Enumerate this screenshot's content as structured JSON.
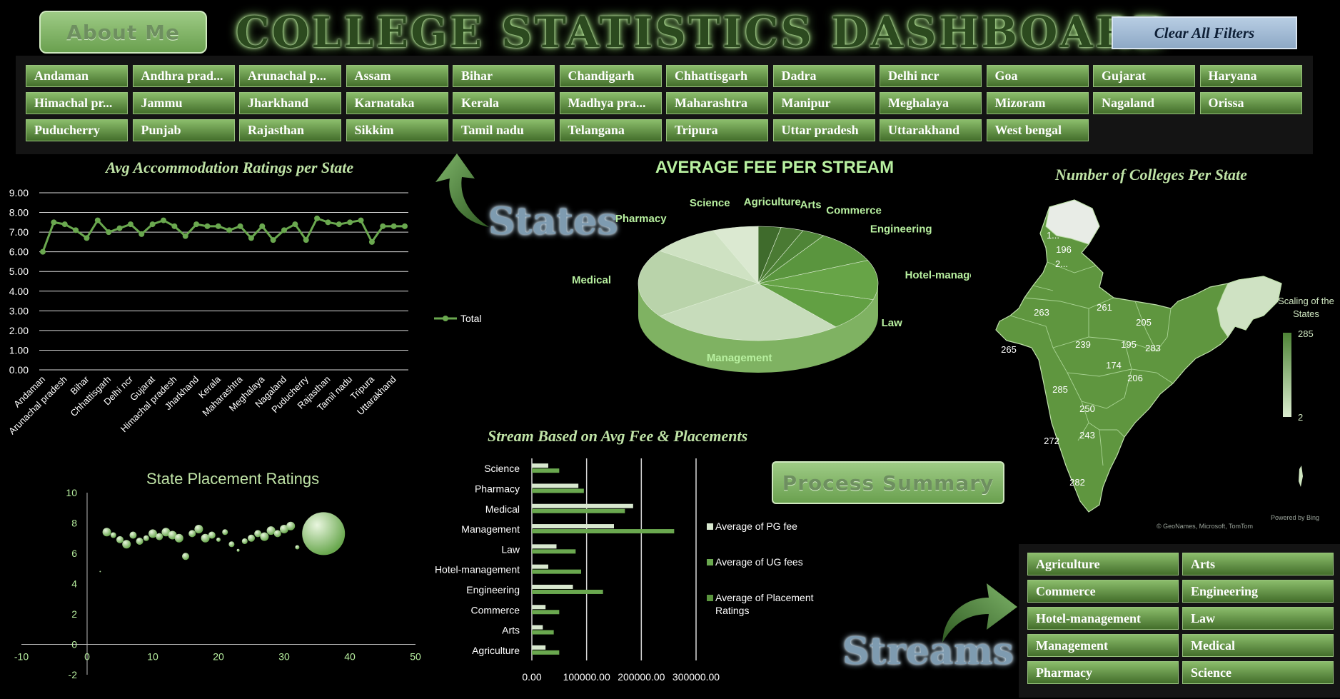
{
  "header": {
    "about_label": "About Me",
    "title": "COLLEGE STATISTICS DASHBOARD",
    "clear_label": "Clear All Filters"
  },
  "states": [
    "Andaman",
    "Andhra prad...",
    "Arunachal p...",
    "Assam",
    "Bihar",
    "Chandigarh",
    "Chhattisgarh",
    "Dadra",
    "Delhi ncr",
    "Goa",
    "Gujarat",
    "Haryana",
    "Himachal pr...",
    "Jammu",
    "Jharkhand",
    "Karnataka",
    "Kerala",
    "Madhya pra...",
    "Maharashtra",
    "Manipur",
    "Meghalaya",
    "Mizoram",
    "Nagaland",
    "Orissa",
    "Puducherry",
    "Punjab",
    "Rajasthan",
    "Sikkim",
    "Tamil nadu",
    "Telangana",
    "Tripura",
    "Uttar pradesh",
    "Uttarakhand",
    "West bengal"
  ],
  "labels": {
    "states_label": "States",
    "streams_label": "Streams",
    "process_label": "Process Summary"
  },
  "streams": [
    "Agriculture",
    "Arts",
    "Commerce",
    "Engineering",
    "Hotel-management",
    "Law",
    "Management",
    "Medical",
    "Pharmacy",
    "Science"
  ],
  "colors": {
    "accent": "#6aa84f",
    "light": "#cfe6c0",
    "tile": "#5e8f43"
  },
  "map": {
    "title": "Number of Colleges Per State",
    "legend_title": "Scaling of the States",
    "legend_max": "285",
    "legend_min": "2",
    "credit1": "Powered by Bing",
    "credit2": "© GeoNames, Microsoft, TomTom",
    "labels": [
      "1...",
      "196",
      "2...",
      "263",
      "261",
      "205",
      "265",
      "239",
      "195",
      "283",
      "174",
      "206",
      "285",
      "250",
      "243",
      "272",
      "282"
    ]
  },
  "chart_data": [
    {
      "type": "line",
      "title": "Avg Accommodation Ratings per State",
      "legend": [
        "Total"
      ],
      "series": [
        {
          "name": "Total",
          "values": [
            6.0,
            7.5,
            7.4,
            7.1,
            6.7,
            7.6,
            7.0,
            7.2,
            7.4,
            6.9,
            7.4,
            7.6,
            7.3,
            6.8,
            7.4,
            7.3,
            7.3,
            7.1,
            7.3,
            6.7,
            7.3,
            6.6,
            7.1,
            7.4,
            6.6,
            7.7,
            7.5,
            7.4,
            7.5,
            7.6,
            6.5,
            7.3,
            7.3,
            7.3
          ]
        }
      ],
      "categories_shown": [
        "Andaman",
        "Arunachal pradesh",
        "Bihar",
        "Chhattisgarh",
        "Delhi ncr",
        "Gujarat",
        "Himachal pradesh",
        "Jharkhand",
        "Kerala",
        "Maharashtra",
        "Meghalaya",
        "Nagaland",
        "Puducherry",
        "Rajasthan",
        "Tamil nadu",
        "Tripura",
        "Uttarakhand"
      ],
      "yticks": [
        "9.00",
        "8.00",
        "7.00",
        "6.00",
        "5.00",
        "4.00",
        "3.00",
        "2.00",
        "1.00",
        "0.00"
      ],
      "ylim": [
        0,
        9
      ]
    },
    {
      "type": "pie",
      "title": "AVERAGE FEE PER STREAM",
      "slices": [
        {
          "label": "Agriculture",
          "value": 3
        },
        {
          "label": "Arts",
          "value": 3
        },
        {
          "label": "Commerce",
          "value": 3
        },
        {
          "label": "Engineering",
          "value": 9
        },
        {
          "label": "Hotel-management",
          "value": 11
        },
        {
          "label": "Law",
          "value": 9
        },
        {
          "label": "Management",
          "value": 26
        },
        {
          "label": "Medical",
          "value": 19
        },
        {
          "label": "Pharmacy",
          "value": 9
        },
        {
          "label": "Science",
          "value": 6
        }
      ]
    },
    {
      "type": "scatter",
      "title": "State Placement Ratings",
      "xticks": [
        "-10",
        "0",
        "10",
        "20",
        "30",
        "40",
        "50"
      ],
      "yticks": [
        "10",
        "8",
        "6",
        "4",
        "2",
        "0",
        "-2"
      ],
      "xlim": [
        -10,
        50
      ],
      "ylim": [
        -2,
        10
      ],
      "points": [
        {
          "x": 2,
          "y": 4.8,
          "r": 1
        },
        {
          "x": 3,
          "y": 7.4,
          "r": 6
        },
        {
          "x": 4,
          "y": 7.2,
          "r": 4
        },
        {
          "x": 5,
          "y": 6.9,
          "r": 5
        },
        {
          "x": 6,
          "y": 6.6,
          "r": 6
        },
        {
          "x": 7,
          "y": 7.2,
          "r": 5
        },
        {
          "x": 8,
          "y": 6.8,
          "r": 5
        },
        {
          "x": 9,
          "y": 7.0,
          "r": 4
        },
        {
          "x": 10,
          "y": 7.3,
          "r": 6
        },
        {
          "x": 11,
          "y": 7.1,
          "r": 5
        },
        {
          "x": 12,
          "y": 7.4,
          "r": 6
        },
        {
          "x": 13,
          "y": 7.2,
          "r": 6
        },
        {
          "x": 14,
          "y": 7.0,
          "r": 6
        },
        {
          "x": 15,
          "y": 5.8,
          "r": 5
        },
        {
          "x": 16,
          "y": 7.3,
          "r": 5
        },
        {
          "x": 17,
          "y": 7.6,
          "r": 6
        },
        {
          "x": 18,
          "y": 7.0,
          "r": 6
        },
        {
          "x": 19,
          "y": 7.2,
          "r": 5
        },
        {
          "x": 20,
          "y": 6.9,
          "r": 3
        },
        {
          "x": 21,
          "y": 7.4,
          "r": 4
        },
        {
          "x": 22,
          "y": 6.6,
          "r": 4
        },
        {
          "x": 23,
          "y": 6.2,
          "r": 2
        },
        {
          "x": 24,
          "y": 6.8,
          "r": 4
        },
        {
          "x": 25,
          "y": 7.0,
          "r": 5
        },
        {
          "x": 26,
          "y": 7.3,
          "r": 5
        },
        {
          "x": 27,
          "y": 7.1,
          "r": 6
        },
        {
          "x": 28,
          "y": 7.5,
          "r": 6
        },
        {
          "x": 29,
          "y": 7.3,
          "r": 5
        },
        {
          "x": 30,
          "y": 7.6,
          "r": 6
        },
        {
          "x": 31,
          "y": 7.8,
          "r": 6
        },
        {
          "x": 32,
          "y": 6.4,
          "r": 3
        },
        {
          "x": 36,
          "y": 7.3,
          "r": 30
        }
      ]
    },
    {
      "type": "bar",
      "title": "Stream Based on Avg Fee & Placements",
      "categories": [
        "Science",
        "Pharmacy",
        "Medical",
        "Management",
        "Law",
        "Hotel-management",
        "Engineering",
        "Commerce",
        "Arts",
        "Agriculture"
      ],
      "xticks": [
        "0.00",
        "100000.00",
        "200000.00",
        "300000.00"
      ],
      "xlim": [
        0,
        300000
      ],
      "series": [
        {
          "name": "Average of PG fee",
          "values": [
            30000,
            85000,
            185000,
            150000,
            45000,
            30000,
            75000,
            25000,
            20000,
            25000
          ]
        },
        {
          "name": "Average of UG fees",
          "values": [
            50000,
            95000,
            170000,
            260000,
            80000,
            90000,
            130000,
            50000,
            40000,
            50000
          ]
        },
        {
          "name": "Average of Placement Ratings",
          "values": [
            7,
            7,
            7,
            7,
            7,
            7,
            7,
            7,
            7,
            7
          ]
        }
      ]
    }
  ]
}
